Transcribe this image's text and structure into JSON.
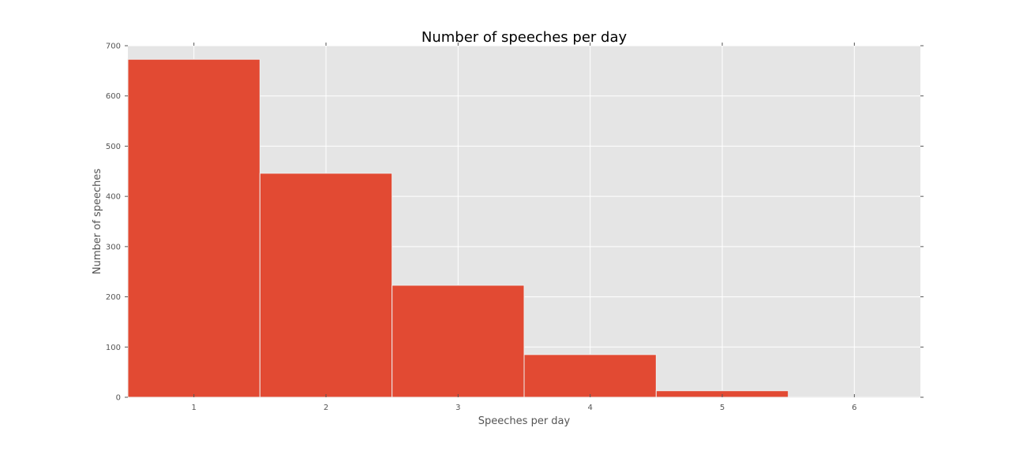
{
  "chart_data": {
    "type": "bar",
    "title": "Number of speeches per day",
    "xlabel": "Speeches per day",
    "ylabel": "Number of speeches",
    "categories": [
      "1",
      "2",
      "3",
      "4",
      "5",
      "6"
    ],
    "x": [
      1,
      2,
      3,
      4,
      5,
      6
    ],
    "values": [
      673,
      446,
      223,
      85,
      13,
      1
    ],
    "xlim": [
      0.5,
      6.5
    ],
    "ylim": [
      0,
      700
    ],
    "xticks": [
      1,
      2,
      3,
      4,
      5,
      6
    ],
    "yticks": [
      0,
      100,
      200,
      300,
      400,
      500,
      600,
      700
    ],
    "grid": true,
    "legend": "none",
    "colors": {
      "bar": "#E24A33",
      "bar_edge": "#EEEEEE",
      "plot_background": "#E5E5E5",
      "grid": "#FFFFFF",
      "tick": "#555555"
    }
  }
}
